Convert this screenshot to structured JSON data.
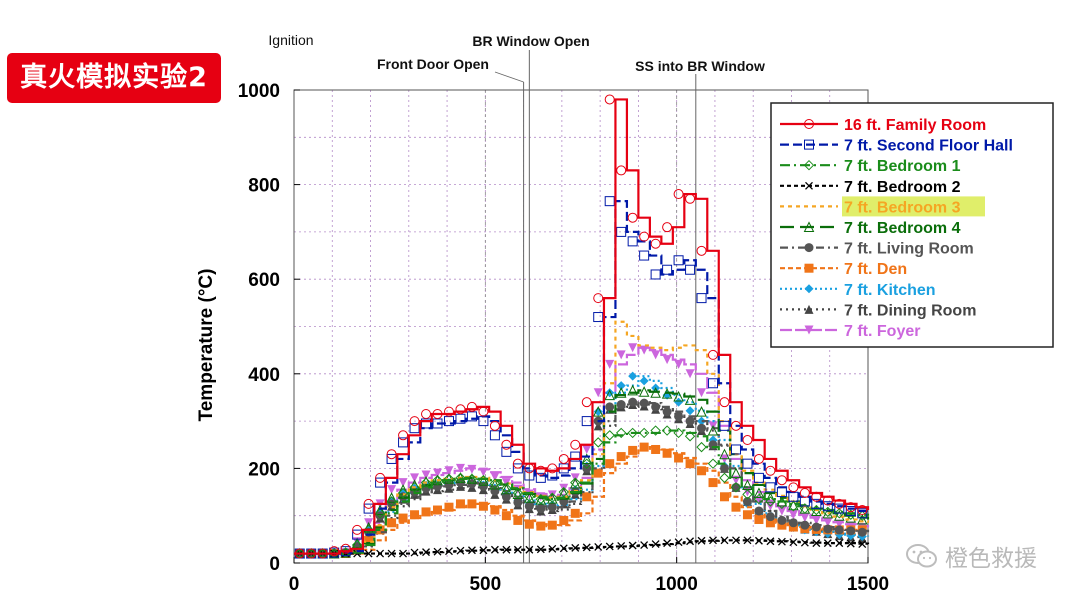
{
  "badge": {
    "text": "真火模拟实验2",
    "color": "#e60012"
  },
  "watermark": {
    "text": "橙色救援"
  },
  "chart_data": {
    "type": "line",
    "xlim": [
      0,
      1500
    ],
    "ylim": [
      0,
      1000
    ],
    "ylabel": "Temperature (°C)",
    "xticks": [
      "0",
      "500",
      "1000",
      "1500"
    ],
    "yticks": [
      "0",
      "200",
      "400",
      "600",
      "800",
      "1000"
    ],
    "grid": true,
    "legend_position": "top-right",
    "events": [
      {
        "label": "Ignition",
        "x": 0
      },
      {
        "label": "Front Door Open",
        "x": 600
      },
      {
        "label": "BR Window Open",
        "x": 615
      },
      {
        "label": "SS into BR Window",
        "x": 1050
      }
    ],
    "x": [
      0,
      30,
      60,
      90,
      120,
      150,
      180,
      210,
      240,
      270,
      300,
      330,
      360,
      390,
      420,
      450,
      480,
      510,
      540,
      570,
      600,
      630,
      660,
      690,
      720,
      750,
      780,
      810,
      840,
      870,
      900,
      930,
      960,
      990,
      1020,
      1050,
      1080,
      1110,
      1140,
      1170,
      1200,
      1230,
      1260,
      1290,
      1320,
      1350,
      1380,
      1410,
      1440,
      1470,
      1500
    ],
    "series": [
      {
        "name": "16 ft. Family Room",
        "color": "#e60012",
        "dash": "",
        "marker": "circle",
        "values": [
          20,
          20,
          20,
          20,
          25,
          30,
          70,
          125,
          180,
          230,
          270,
          300,
          315,
          315,
          320,
          325,
          330,
          320,
          290,
          250,
          210,
          200,
          195,
          200,
          220,
          250,
          340,
          560,
          980,
          830,
          730,
          690,
          675,
          710,
          780,
          770,
          660,
          440,
          340,
          290,
          260,
          220,
          195,
          175,
          160,
          148,
          140,
          132,
          125,
          118,
          112
        ]
      },
      {
        "name": "7 ft. Second Floor Hall",
        "color": "#0019a8",
        "dash": "9,4",
        "marker": "square",
        "values": [
          20,
          20,
          20,
          20,
          22,
          25,
          60,
          115,
          170,
          220,
          255,
          285,
          295,
          295,
          300,
          305,
          310,
          300,
          270,
          235,
          200,
          185,
          180,
          185,
          200,
          225,
          300,
          520,
          765,
          700,
          680,
          650,
          610,
          620,
          640,
          620,
          560,
          380,
          290,
          240,
          210,
          180,
          160,
          150,
          140,
          130,
          125,
          120,
          115,
          110,
          105
        ]
      },
      {
        "name": "7 ft. Bedroom 1",
        "color": "#1a8c1a",
        "dash": "10,4,2,4",
        "marker": "diamond",
        "values": [
          20,
          20,
          20,
          20,
          20,
          22,
          38,
          70,
          105,
          130,
          148,
          160,
          170,
          175,
          178,
          180,
          178,
          175,
          168,
          158,
          148,
          140,
          135,
          138,
          150,
          170,
          210,
          255,
          270,
          275,
          275,
          275,
          280,
          280,
          275,
          268,
          245,
          210,
          180,
          160,
          145,
          135,
          130,
          125,
          120,
          115,
          112,
          108,
          105,
          102,
          100
        ]
      },
      {
        "name": "7 ft. Bedroom 2",
        "color": "#000000",
        "dash": "4,3",
        "marker": "x",
        "values": [
          20,
          20,
          20,
          20,
          20,
          20,
          20,
          20,
          20,
          20,
          20,
          22,
          23,
          24,
          25,
          26,
          27,
          27,
          28,
          28,
          28,
          28,
          29,
          30,
          31,
          32,
          33,
          34,
          35,
          36,
          37,
          38,
          40,
          42,
          44,
          46,
          47,
          48,
          48,
          48,
          48,
          47,
          46,
          45,
          44,
          43,
          42,
          42,
          42,
          41,
          40
        ]
      },
      {
        "name": "7 ft. Bedroom 3",
        "color": "#f5a623",
        "dash": "4,4",
        "marker": "none",
        "values": [
          20,
          20,
          20,
          20,
          20,
          22,
          45,
          80,
          118,
          145,
          160,
          170,
          175,
          178,
          180,
          182,
          180,
          175,
          168,
          160,
          150,
          142,
          138,
          140,
          152,
          175,
          230,
          380,
          510,
          480,
          460,
          455,
          450,
          455,
          460,
          450,
          400,
          300,
          230,
          195,
          170,
          155,
          142,
          130,
          120,
          112,
          105,
          98,
          92,
          88,
          85
        ]
      },
      {
        "name": "7 ft. Bedroom 4",
        "color": "#0a6e0a",
        "dash": "14,6",
        "marker": "triangle-open",
        "values": [
          20,
          20,
          20,
          20,
          20,
          22,
          42,
          75,
          112,
          138,
          155,
          165,
          172,
          175,
          178,
          180,
          178,
          174,
          166,
          156,
          146,
          138,
          134,
          136,
          148,
          168,
          220,
          320,
          355,
          360,
          365,
          362,
          360,
          358,
          352,
          345,
          320,
          280,
          230,
          190,
          165,
          148,
          138,
          130,
          122,
          115,
          110,
          105,
          100,
          96,
          92
        ]
      },
      {
        "name": "7 ft. Living Room",
        "color": "#555555",
        "dash": "8,4,2,4",
        "marker": "circle-filled",
        "values": [
          20,
          20,
          20,
          20,
          20,
          22,
          35,
          65,
          100,
          125,
          140,
          150,
          158,
          162,
          165,
          170,
          168,
          162,
          152,
          140,
          128,
          120,
          115,
          118,
          130,
          150,
          200,
          300,
          330,
          335,
          340,
          338,
          330,
          320,
          310,
          300,
          285,
          250,
          200,
          160,
          130,
          110,
          98,
          90,
          85,
          80,
          76,
          72,
          70,
          68,
          65
        ]
      },
      {
        "name": "7 ft. Den",
        "color": "#f07418",
        "dash": "5,3",
        "marker": "square-filled",
        "values": [
          20,
          20,
          20,
          20,
          20,
          20,
          28,
          48,
          70,
          85,
          95,
          102,
          108,
          112,
          118,
          125,
          125,
          120,
          112,
          100,
          90,
          82,
          78,
          80,
          90,
          105,
          140,
          190,
          210,
          225,
          238,
          245,
          240,
          232,
          222,
          210,
          195,
          170,
          140,
          118,
          102,
          92,
          85,
          80,
          76,
          73,
          71,
          70,
          70,
          70,
          70
        ]
      },
      {
        "name": "7 ft. Kitchen",
        "color": "#1aa0e0",
        "dash": "2,3",
        "marker": "diamond-filled",
        "values": [
          20,
          20,
          20,
          20,
          20,
          22,
          38,
          70,
          108,
          132,
          148,
          158,
          165,
          168,
          170,
          172,
          170,
          165,
          155,
          145,
          132,
          125,
          120,
          123,
          135,
          155,
          205,
          320,
          360,
          375,
          395,
          385,
          370,
          355,
          340,
          322,
          300,
          260,
          205,
          160,
          125,
          105,
          92,
          82,
          75,
          70,
          66,
          62,
          60,
          58,
          56
        ]
      },
      {
        "name": "7 ft. Dining Room",
        "color": "#444444",
        "dash": "2,4",
        "marker": "triangle-filled",
        "values": [
          20,
          20,
          20,
          20,
          20,
          22,
          35,
          62,
          95,
          120,
          135,
          145,
          152,
          155,
          158,
          162,
          160,
          155,
          145,
          135,
          123,
          115,
          110,
          113,
          125,
          145,
          195,
          290,
          325,
          330,
          335,
          332,
          325,
          315,
          305,
          295,
          280,
          248,
          200,
          160,
          130,
          110,
          96,
          86,
          78,
          72,
          67,
          62,
          58,
          55,
          52
        ]
      },
      {
        "name": "7 ft. Foyer",
        "color": "#cc66dd",
        "dash": "12,3",
        "marker": "triangle-down-filled",
        "values": [
          20,
          20,
          20,
          20,
          20,
          22,
          45,
          85,
          125,
          155,
          170,
          180,
          186,
          190,
          195,
          200,
          198,
          192,
          182,
          170,
          156,
          146,
          140,
          144,
          158,
          180,
          240,
          360,
          420,
          440,
          455,
          450,
          440,
          430,
          420,
          400,
          360,
          290,
          220,
          175,
          150,
          132,
          120,
          110,
          102,
          96,
          90,
          86,
          82,
          78,
          75
        ]
      }
    ]
  }
}
